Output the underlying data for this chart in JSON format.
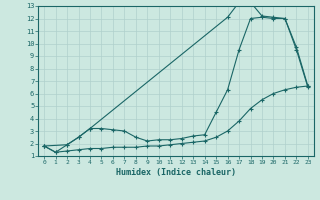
{
  "xlabel": "Humidex (Indice chaleur)",
  "bg_color": "#cce8e0",
  "grid_color": "#b0d0cc",
  "line_color": "#1a6666",
  "xlim": [
    -0.5,
    23.5
  ],
  "ylim": [
    1,
    13
  ],
  "xticks": [
    0,
    1,
    2,
    3,
    4,
    5,
    6,
    7,
    8,
    9,
    10,
    11,
    12,
    13,
    14,
    15,
    16,
    17,
    18,
    19,
    20,
    21,
    22,
    23
  ],
  "yticks": [
    1,
    2,
    3,
    4,
    5,
    6,
    7,
    8,
    9,
    10,
    11,
    12,
    13
  ],
  "line1_x": [
    0,
    1,
    2,
    3,
    4,
    5,
    6,
    7,
    8,
    9,
    10,
    11,
    12,
    13,
    14,
    15,
    16,
    17,
    18,
    19,
    20,
    21,
    22,
    23
  ],
  "line1_y": [
    1.8,
    1.3,
    1.9,
    2.5,
    3.2,
    3.2,
    3.1,
    3.0,
    2.5,
    2.2,
    2.3,
    2.3,
    2.4,
    2.6,
    2.7,
    4.5,
    6.3,
    9.5,
    12.0,
    12.1,
    12.0,
    12.0,
    9.5,
    6.5
  ],
  "line2_x": [
    0,
    2,
    3,
    4,
    16,
    17,
    18,
    19,
    20,
    21,
    22,
    23
  ],
  "line2_y": [
    1.8,
    1.9,
    2.5,
    3.2,
    12.1,
    13.3,
    13.3,
    12.2,
    12.1,
    12.0,
    9.7,
    6.6
  ],
  "line3_x": [
    0,
    1,
    2,
    3,
    4,
    5,
    6,
    7,
    8,
    9,
    10,
    11,
    12,
    13,
    14,
    15,
    16,
    17,
    18,
    19,
    20,
    21,
    22,
    23
  ],
  "line3_y": [
    1.8,
    1.3,
    1.4,
    1.5,
    1.6,
    1.6,
    1.7,
    1.7,
    1.7,
    1.8,
    1.8,
    1.9,
    2.0,
    2.1,
    2.2,
    2.5,
    3.0,
    3.8,
    4.8,
    5.5,
    6.0,
    6.3,
    6.5,
    6.6
  ]
}
